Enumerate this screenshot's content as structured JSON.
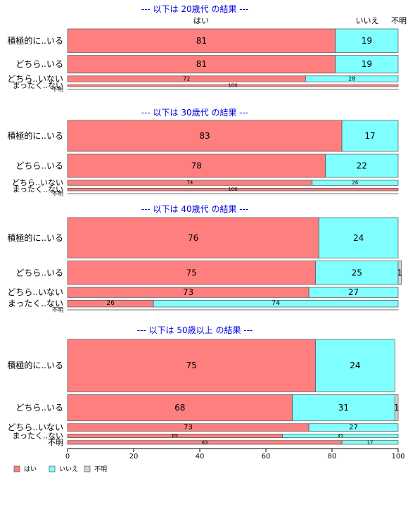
{
  "chart_data": {
    "type": "bar",
    "orientation": "horizontal",
    "stacked": "percent",
    "xlim": [
      0,
      100
    ],
    "x_ticks": [
      "0",
      "20",
      "40",
      "60",
      "80",
      "100"
    ],
    "legend": {
      "position": "bottom-left",
      "items": [
        {
          "label": "はい",
          "color": "#FF7F7F"
        },
        {
          "label": "いいえ",
          "color": "#7FFFFF"
        },
        {
          "label": "不明",
          "color": "#D3D3D3"
        }
      ]
    },
    "header_labels": {
      "yes": "はい",
      "no": "いいえ",
      "unknown": "不明"
    },
    "panels": [
      {
        "title": "--- 以下は 20歳代 の結果 ---",
        "categories": [
          "積極的に..いる",
          "どちら..いる",
          "どちら..いない",
          "まったく..ない",
          "不明"
        ],
        "weights": [
          12,
          9,
          3,
          1,
          0
        ],
        "series": [
          {
            "name": "はい",
            "values": [
              81,
              81,
              72,
              100,
              0
            ]
          },
          {
            "name": "いいえ",
            "values": [
              19,
              19,
              28,
              0,
              0
            ]
          },
          {
            "name": "不明",
            "values": [
              0,
              0,
              0,
              0,
              0
            ]
          }
        ]
      },
      {
        "title": "--- 以下は 30歳代 の結果 ---",
        "categories": [
          "積極的に..いる",
          "どちら..いる",
          "どちら..いない",
          "まったく..ない",
          "不明"
        ],
        "weights": [
          12,
          9,
          2,
          1,
          0
        ],
        "series": [
          {
            "name": "はい",
            "values": [
              83,
              78,
              74,
              100,
              0
            ]
          },
          {
            "name": "いいえ",
            "values": [
              17,
              22,
              26,
              0,
              0
            ]
          },
          {
            "name": "不明",
            "values": [
              0,
              0,
              0,
              0,
              0
            ]
          }
        ]
      },
      {
        "title": "--- 以下は 40歳代 の結果 ---",
        "categories": [
          "積極的に..いる",
          "どちら..いる",
          "どちら..いない",
          "まったく..ない",
          "不明"
        ],
        "weights": [
          12,
          7,
          3,
          2,
          0
        ],
        "series": [
          {
            "name": "はい",
            "values": [
              76,
              75,
              73,
              26,
              0
            ]
          },
          {
            "name": "いいえ",
            "values": [
              24,
              25,
              27,
              74,
              0
            ]
          },
          {
            "name": "不明",
            "values": [
              0,
              1,
              0,
              0,
              0
            ]
          }
        ]
      },
      {
        "title": "--- 以下は 50歳以上 の結果 ---",
        "categories": [
          "積極的に..いる",
          "どちら..いる",
          "どちら..いない",
          "まったく..ない",
          "不明"
        ],
        "weights": [
          14,
          7,
          2,
          1,
          1
        ],
        "series": [
          {
            "name": "はい",
            "values": [
              75,
              68,
              73,
              65,
              83
            ]
          },
          {
            "name": "いいえ",
            "values": [
              24,
              31,
              27,
              35,
              17
            ]
          },
          {
            "name": "不明",
            "values": [
              0,
              1,
              0,
              0,
              0
            ]
          }
        ]
      }
    ]
  }
}
